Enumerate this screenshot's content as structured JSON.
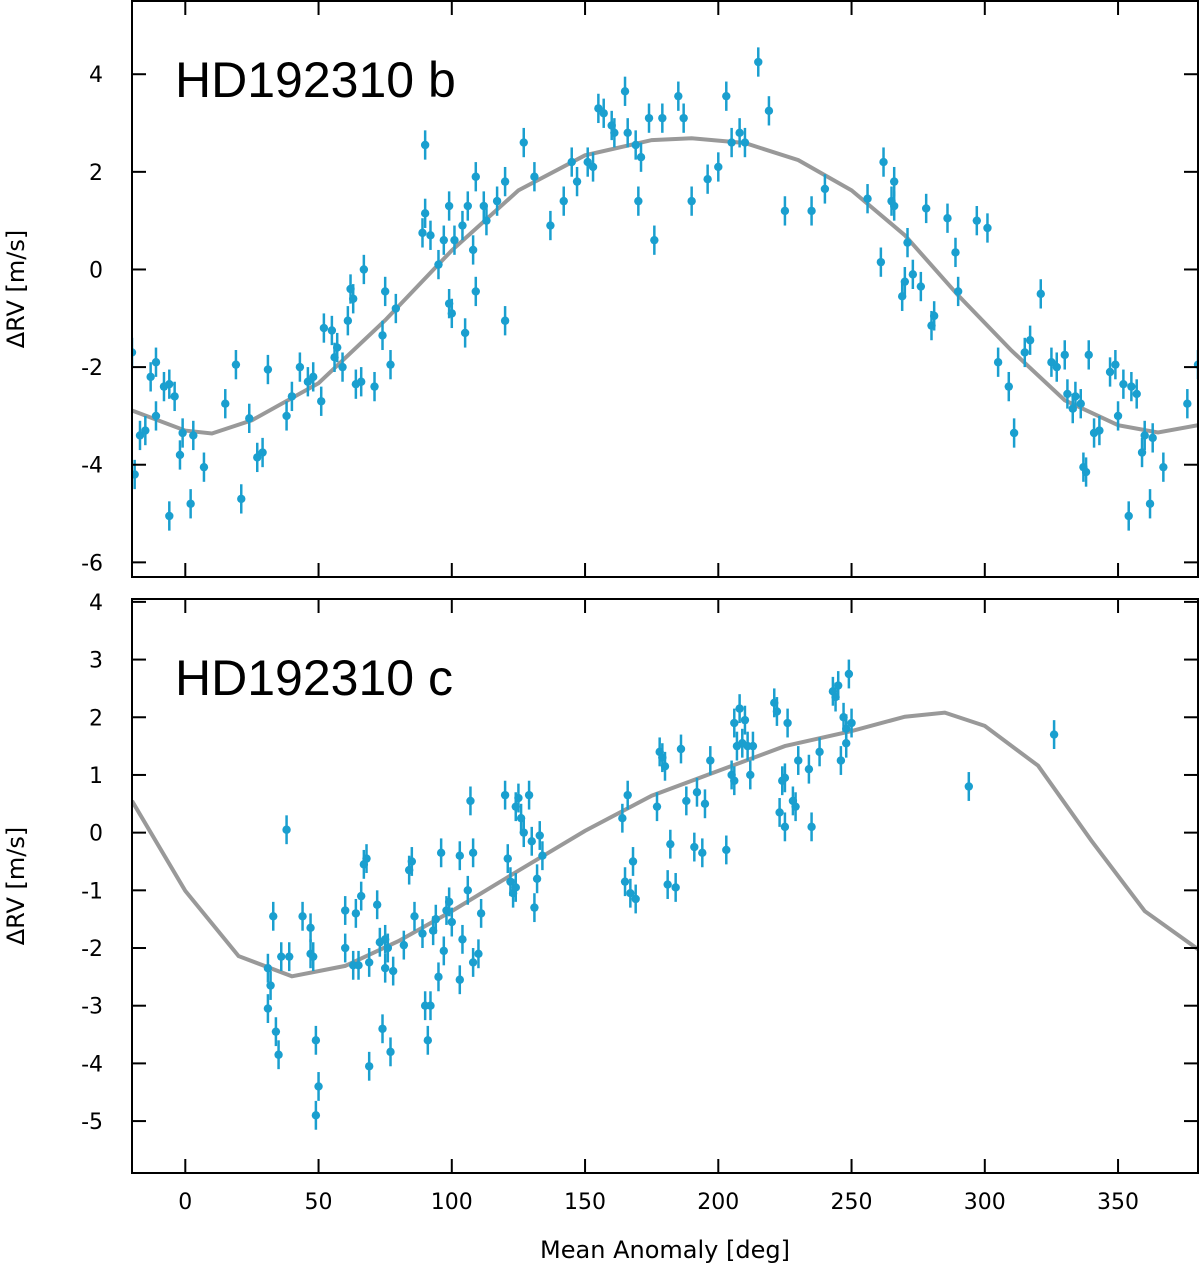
{
  "chart_data": [
    {
      "type": "scatter",
      "title": "HD192310 b",
      "ylabel": "ΔRV [m/s]",
      "xlim": [
        -20,
        380
      ],
      "ylim": [
        -6.3,
        5.5
      ],
      "xticks": [
        0,
        50,
        100,
        150,
        200,
        250,
        300,
        350
      ],
      "yticks": [
        -6,
        -4,
        -2,
        0,
        2,
        4
      ],
      "color": "#1a9fcf",
      "yerr": 0.3,
      "x": [
        -20,
        -19,
        -17,
        -15,
        -13,
        -11,
        -11,
        -8,
        -6,
        -6,
        -4,
        -2,
        -1,
        2,
        3,
        7,
        15,
        19,
        21,
        24,
        27,
        29,
        31,
        38,
        40,
        43,
        46,
        48,
        51,
        52,
        55,
        56,
        57,
        59,
        61,
        62,
        63,
        64,
        66,
        67,
        71,
        74,
        75,
        77,
        79,
        89,
        90,
        90,
        92,
        95,
        97,
        99,
        99,
        100,
        101,
        104,
        105,
        106,
        108,
        109,
        109,
        112,
        113,
        117,
        120,
        120,
        127,
        131,
        137,
        142,
        145,
        147,
        151,
        153,
        155,
        157,
        160,
        161,
        165,
        166,
        169,
        170,
        171,
        174,
        176,
        179,
        185,
        187,
        190,
        196,
        200,
        203,
        205,
        208,
        210,
        215,
        219,
        225,
        235,
        240,
        256,
        261,
        262,
        265,
        266,
        266,
        269,
        270,
        271,
        273,
        276,
        278,
        280,
        281,
        286,
        289,
        290,
        297,
        301,
        305,
        309,
        311,
        315,
        317,
        321,
        325,
        327,
        330,
        331,
        333,
        334,
        336,
        337,
        338,
        339,
        341,
        343,
        347,
        349,
        350,
        352,
        354,
        355,
        357,
        359,
        360,
        362,
        363,
        367,
        376,
        380
      ],
      "values": [
        -1.7,
        -4.2,
        -3.4,
        -3.3,
        -2.2,
        -1.9,
        -3.0,
        -2.4,
        -5.05,
        -2.35,
        -2.6,
        -3.8,
        -3.35,
        -4.8,
        -3.4,
        -4.05,
        -2.75,
        -1.95,
        -4.7,
        -3.05,
        -3.85,
        -3.75,
        -2.05,
        -3.0,
        -2.6,
        -2.0,
        -2.3,
        -2.2,
        -2.7,
        -1.2,
        -1.25,
        -1.8,
        -1.6,
        -2.0,
        -1.05,
        -0.4,
        -0.6,
        -2.35,
        -2.3,
        0,
        -2.4,
        -1.35,
        -0.45,
        -1.95,
        -0.8,
        0.75,
        1.15,
        2.55,
        0.7,
        0.1,
        0.6,
        1.3,
        -0.7,
        -0.9,
        0.6,
        0.9,
        -1.3,
        1.3,
        0.4,
        1.9,
        -0.45,
        1.3,
        1.0,
        1.4,
        1.8,
        -1.05,
        2.6,
        1.9,
        0.9,
        1.4,
        2.2,
        1.8,
        2.2,
        2.1,
        3.3,
        3.2,
        2.95,
        2.8,
        3.65,
        2.8,
        2.55,
        1.4,
        2.3,
        3.1,
        0.6,
        3.1,
        3.55,
        3.1,
        1.4,
        1.85,
        2.1,
        3.55,
        2.6,
        2.8,
        2.6,
        4.25,
        3.25,
        1.2,
        1.2,
        1.65,
        1.45,
        0.15,
        2.2,
        1.4,
        1.3,
        1.8,
        -0.55,
        -0.25,
        0.55,
        -0.1,
        -0.35,
        1.25,
        -1.15,
        -0.95,
        1.05,
        0.35,
        -0.45,
        1.0,
        0.85,
        -1.9,
        -2.4,
        -3.35,
        -1.7,
        -1.45,
        -0.5,
        -1.9,
        -2.0,
        -1.75,
        -2.55,
        -2.85,
        -2.6,
        -2.75,
        -4.05,
        -4.15,
        -1.75,
        -3.35,
        -3.3,
        -2.1,
        -1.95,
        -3.0,
        -2.35,
        -5.05,
        -2.4,
        -2.55,
        -3.75,
        -3.4,
        -4.8,
        -3.45,
        -4.05,
        -2.75,
        -1.95
      ],
      "model": {
        "color": "#999999",
        "x": [
          -20,
          0,
          10,
          25,
          50,
          75,
          100,
          125,
          150,
          175,
          190,
          210,
          230,
          250,
          270,
          290,
          310,
          330,
          350,
          365,
          380
        ],
        "values": [
          -2.89,
          -3.3,
          -3.36,
          -3.09,
          -2.33,
          -1.04,
          0.39,
          1.62,
          2.34,
          2.65,
          2.69,
          2.59,
          2.24,
          1.62,
          0.7,
          -0.53,
          -1.66,
          -2.68,
          -3.19,
          -3.34,
          -3.19
        ]
      }
    },
    {
      "type": "scatter",
      "title": "HD192310 c",
      "ylabel": "ΔRV [m/s]",
      "xlabel": "Mean Anomaly [deg]",
      "xlim": [
        -20,
        380
      ],
      "ylim": [
        -5.9,
        4.05
      ],
      "xticks": [
        0,
        50,
        100,
        150,
        200,
        250,
        300,
        350
      ],
      "yticks": [
        -5,
        -4,
        -3,
        -2,
        -1,
        0,
        1,
        2,
        3,
        4
      ],
      "color": "#1a9fcf",
      "yerr": 0.25,
      "x": [
        31,
        31,
        32,
        33,
        34,
        35,
        36,
        38,
        39,
        44,
        47,
        47,
        48,
        49,
        49,
        50,
        60,
        60,
        63,
        64,
        65,
        66,
        67,
        68,
        69,
        69,
        72,
        73,
        74,
        75,
        75,
        76,
        77,
        78,
        82,
        84,
        85,
        86,
        89,
        90,
        91,
        92,
        93,
        94,
        95,
        96,
        97,
        98,
        99,
        100,
        103,
        103,
        104,
        106,
        107,
        108,
        108,
        110,
        111,
        120,
        121,
        122,
        123,
        124,
        124,
        125,
        126,
        127,
        129,
        130,
        131,
        132,
        133,
        134,
        164,
        165,
        166,
        167,
        168,
        169,
        177,
        178,
        179,
        180,
        181,
        182,
        184,
        186,
        188,
        191,
        192,
        194,
        195,
        197,
        203,
        205,
        206,
        206,
        207,
        208,
        209,
        210,
        211,
        212,
        213,
        221,
        222,
        223,
        224,
        225,
        225,
        226,
        228,
        229,
        230,
        234,
        235,
        238,
        243,
        244,
        245,
        246,
        247,
        248,
        248,
        249,
        250,
        294,
        326
      ],
      "values": [
        -2.35,
        -3.05,
        -2.65,
        -1.45,
        -3.45,
        -3.85,
        -2.15,
        0.05,
        -2.15,
        -1.45,
        -2.1,
        -1.65,
        -2.15,
        -3.6,
        -4.9,
        -4.4,
        -1.35,
        -2.0,
        -2.3,
        -1.4,
        -2.3,
        -1.1,
        -0.55,
        -0.45,
        -2.25,
        -4.05,
        -1.25,
        -1.9,
        -3.4,
        -2.35,
        -1.85,
        -2.0,
        -3.8,
        -2.4,
        -1.95,
        -0.65,
        -0.5,
        -1.45,
        -1.75,
        -3.0,
        -3.6,
        -3.0,
        -1.7,
        -1.5,
        -2.5,
        -0.35,
        -2.05,
        -1.35,
        -1.2,
        -1.55,
        -2.55,
        -0.4,
        -1.85,
        -1.0,
        0.55,
        -0.35,
        -2.25,
        -2.1,
        -1.4,
        0.65,
        -0.45,
        -0.85,
        -1.05,
        0.45,
        -0.95,
        0.6,
        0.25,
        0,
        0.65,
        -0.15,
        -1.3,
        -0.8,
        -0.05,
        -0.4,
        0.25,
        -0.85,
        0.65,
        -1.05,
        -0.5,
        -1.15,
        0.45,
        1.4,
        1.3,
        1.15,
        -0.9,
        -0.2,
        -0.95,
        1.45,
        0.55,
        -0.25,
        0.7,
        -0.35,
        0.5,
        1.25,
        -0.3,
        1.0,
        0.9,
        1.9,
        1.5,
        2.15,
        1.55,
        1.95,
        1.5,
        1.0,
        1.5,
        2.25,
        2.1,
        0.35,
        0.9,
        0.95,
        0.1,
        1.9,
        0.55,
        0.45,
        1.25,
        1.1,
        0.1,
        1.4,
        2.45,
        2.35,
        2.55,
        1.25,
        2.0,
        1.55,
        1.8,
        2.75,
        1.9,
        0.8,
        1.7
      ],
      "model": {
        "color": "#999999",
        "x": [
          -20,
          0,
          20,
          40,
          60,
          80,
          100,
          125,
          150,
          175,
          200,
          225,
          250,
          270,
          285,
          300,
          320,
          340,
          360,
          380
        ],
        "values": [
          0.55,
          -1.01,
          -2.14,
          -2.49,
          -2.31,
          -1.88,
          -1.36,
          -0.66,
          0.03,
          0.64,
          1.07,
          1.5,
          1.76,
          2.01,
          2.08,
          1.85,
          1.16,
          -0.14,
          -1.36,
          -2.02
        ]
      }
    }
  ]
}
